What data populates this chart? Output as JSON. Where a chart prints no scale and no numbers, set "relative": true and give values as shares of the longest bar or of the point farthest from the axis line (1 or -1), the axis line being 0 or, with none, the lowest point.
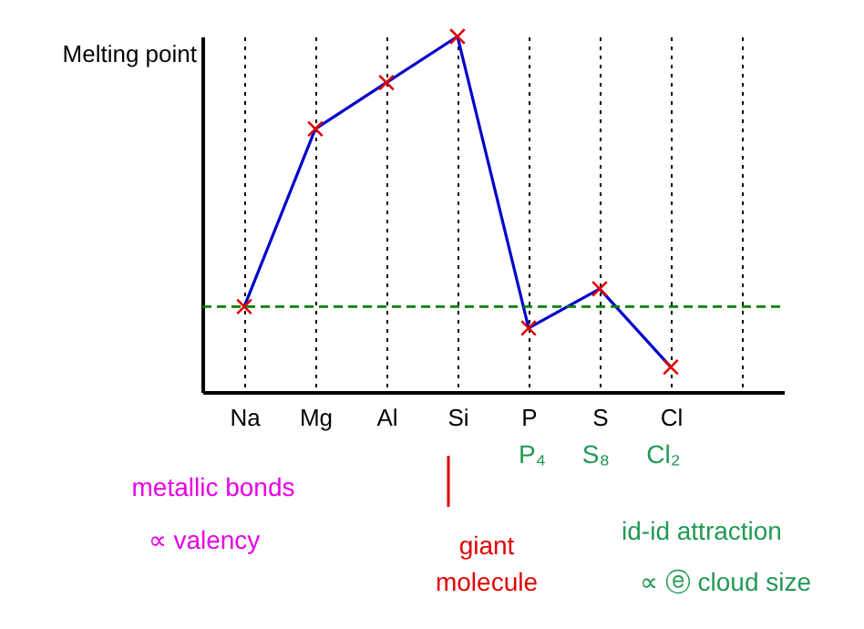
{
  "chart_data": {
    "type": "line",
    "ylabel": "Melting point",
    "relative": true,
    "categories": [
      "Na",
      "Mg",
      "Al",
      "Si",
      "P",
      "S",
      "Cl",
      null
    ],
    "series": [
      {
        "color": "#0000cc",
        "values": [
          0.24,
          0.74,
          0.87,
          1,
          0.18,
          0.29,
          0.07,
          null
        ]
      }
    ],
    "colors": [
      "#e00000",
      "#e00000",
      "#e00000",
      "#e00000",
      "#e00000",
      "#e00000",
      "#e00000",
      "#e00000"
    ],
    "marker": "cross",
    "grid": "x",
    "ref_lines": [
      {
        "axis": "y",
        "value": 0.24,
        "color": "#008000",
        "line_style": "dashed"
      }
    ],
    "annotations": [
      "metallic bonds",
      "∝ valency",
      "giant molecule",
      "P₄",
      "S₈",
      "Cl₂",
      "id-id attraction",
      "∝ ⓔ cloud size"
    ]
  }
}
